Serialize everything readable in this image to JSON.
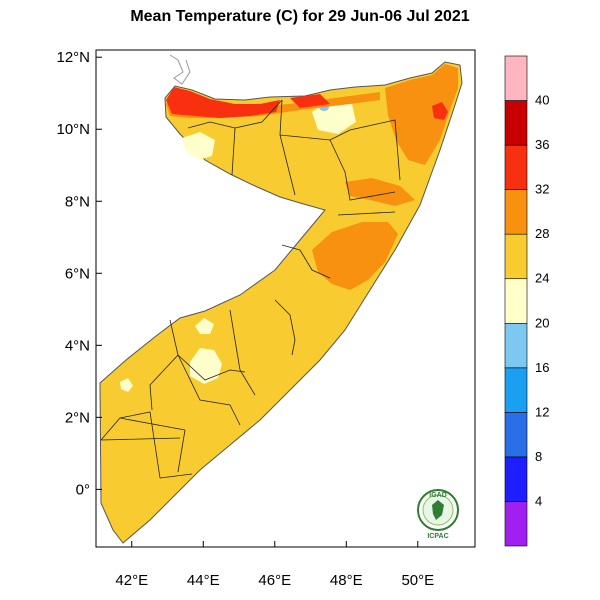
{
  "title": "Mean Temperature (C) for 29 Jun-06 Jul 2021",
  "map": {
    "region": "Somalia",
    "lon_range": [
      41.0,
      51.6
    ],
    "lat_range": [
      -1.6,
      12.2
    ],
    "lat_ticks": [
      {
        "value": 12,
        "label": "12°N"
      },
      {
        "value": 10,
        "label": "10°N"
      },
      {
        "value": 8,
        "label": "8°N"
      },
      {
        "value": 6,
        "label": "6°N"
      },
      {
        "value": 4,
        "label": "4°N"
      },
      {
        "value": 2,
        "label": "2°N"
      },
      {
        "value": 0,
        "label": "0°"
      }
    ],
    "lon_ticks": [
      {
        "value": 42,
        "label": "42°E"
      },
      {
        "value": 44,
        "label": "44°E"
      },
      {
        "value": 46,
        "label": "46°E"
      },
      {
        "value": 48,
        "label": "48°E"
      },
      {
        "value": 50,
        "label": "50°E"
      }
    ]
  },
  "colorbar": {
    "labels": [
      "4",
      "8",
      "12",
      "16",
      "20",
      "24",
      "28",
      "32",
      "36",
      "40"
    ],
    "bins": [
      {
        "color": "#a020f0"
      },
      {
        "color": "#1e1eff"
      },
      {
        "color": "#2a6fe8"
      },
      {
        "color": "#1aa0f0"
      },
      {
        "color": "#7cc8f0"
      },
      {
        "color": "#ffffcc"
      },
      {
        "color": "#f8cc30"
      },
      {
        "color": "#f89010"
      },
      {
        "color": "#f83010"
      },
      {
        "color": "#c80000"
      },
      {
        "color": "#ffb6c1"
      }
    ]
  },
  "logo": {
    "top_text": "IGAD",
    "bottom_text": "ICPAC"
  }
}
